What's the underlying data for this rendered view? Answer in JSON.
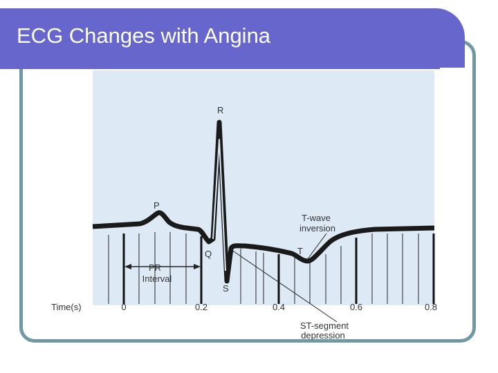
{
  "slide": {
    "title": "ECG Changes with Angina"
  },
  "diagram": {
    "labels": {
      "r": "R",
      "p": "P",
      "q": "Q",
      "s": "S",
      "t": "T",
      "twave_line1": "T-wave",
      "twave_line2": "inversion",
      "pr_line1": "PR",
      "pr_line2": "Interval",
      "st_line1": "ST-segment",
      "st_line2": "depression"
    },
    "axis": {
      "label": "Time(s)",
      "ticks": [
        "0",
        "0.2",
        "0.4",
        "0.6",
        "0.8"
      ]
    },
    "colors": {
      "background": "#dde9f5",
      "trace": "#1a1a1a",
      "title_bar": "#6666cc",
      "frame": "#6f9aa3"
    }
  }
}
